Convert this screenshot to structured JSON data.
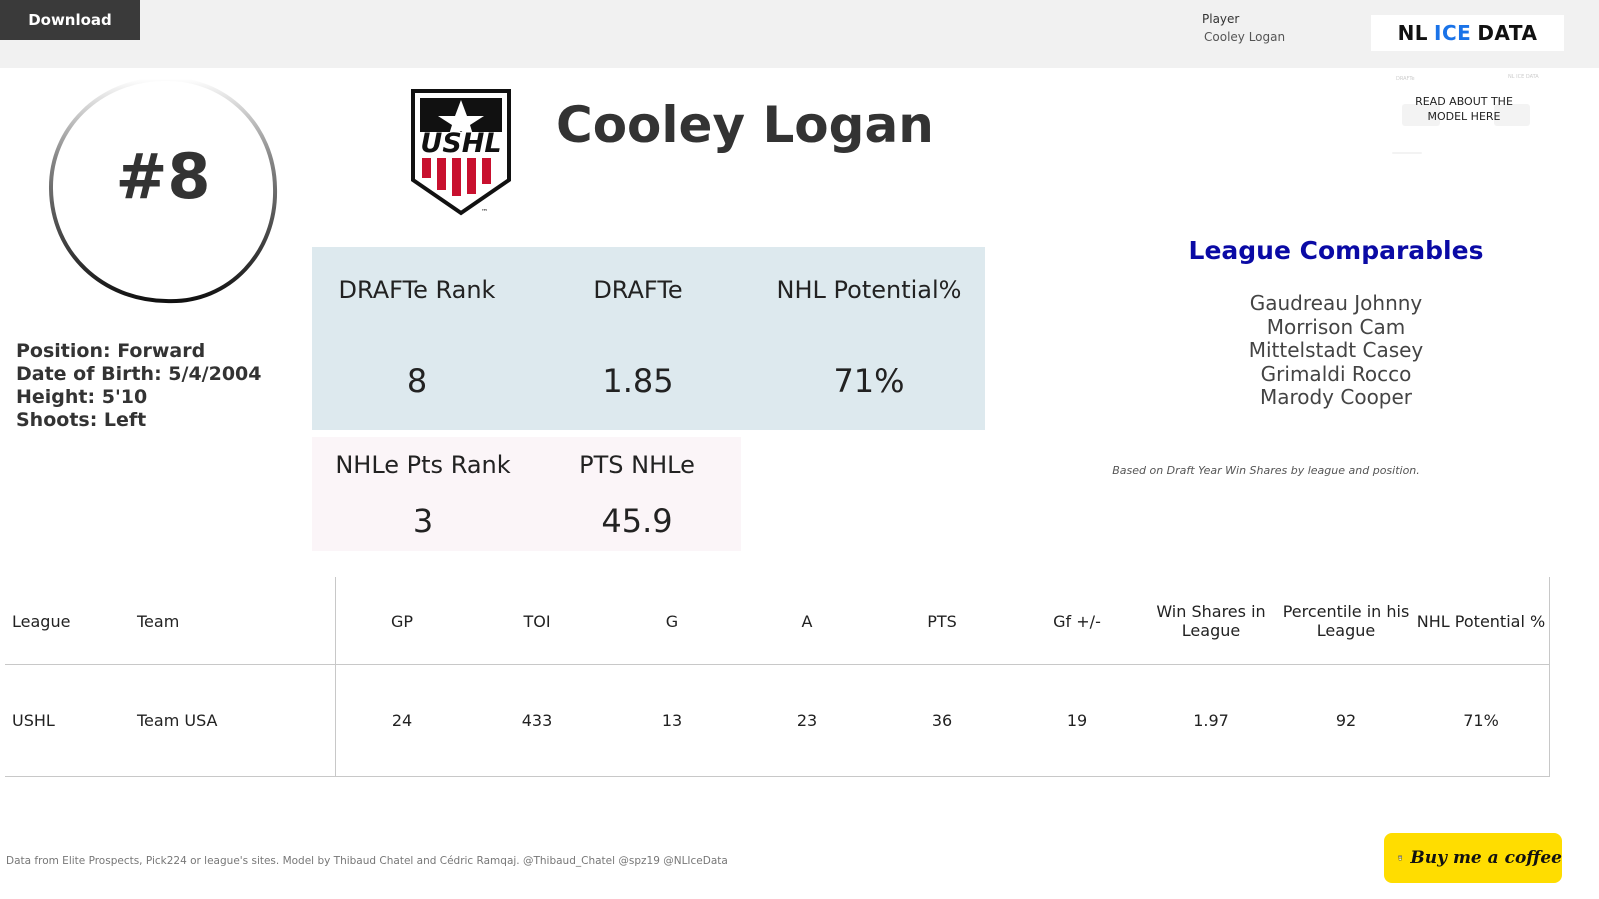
{
  "toolbar": {
    "download_label": "Download"
  },
  "filter": {
    "label": "Player",
    "value": "Cooley Logan"
  },
  "brand": {
    "part1": "NL",
    "part2": "ICE",
    "part3": "DATA"
  },
  "player": {
    "jersey": "#8",
    "name": "Cooley Logan",
    "league_logo_text": "USHL",
    "bio": {
      "position": "Position: Forward",
      "dob": "Date of Birth: 5/4/2004",
      "height": "Height: 5'10",
      "shoots": "Shoots: Left"
    }
  },
  "model_link": {
    "text": "READ ABOUT THE MODEL HERE",
    "ghost_left": "DRAFTe",
    "ghost_right": "NL ICE DATA"
  },
  "stats": {
    "drafte_rank_label": "DRAFTe Rank",
    "drafte_rank_value": "8",
    "drafte_label": "DRAFTe",
    "drafte_value": "1.85",
    "nhl_potential_label": "NHL Potential%",
    "nhl_potential_value": "71%",
    "nhle_pts_rank_label": "NHLe Pts Rank",
    "nhle_pts_rank_value": "3",
    "pts_nhle_label": "PTS NHLe",
    "pts_nhle_value": "45.9"
  },
  "comparables": {
    "title": "League Comparables",
    "players": [
      "Gaudreau Johnny",
      "Morrison Cam",
      "Mittelstadt Casey",
      "Grimaldi Rocco",
      "Marody Cooper"
    ],
    "note": "Based on Draft Year Win Shares by league and position."
  },
  "table": {
    "headers": [
      "League",
      "Team",
      "GP",
      "TOI",
      "G",
      "A",
      "PTS",
      "Gf +/-",
      "Win Shares in League",
      "Percentile in his League",
      "NHL Potential %"
    ],
    "rows": [
      [
        "USHL",
        "Team USA",
        "24",
        "433",
        "13",
        "23",
        "36",
        "19",
        "1.97",
        "92",
        "71%"
      ]
    ]
  },
  "footer": {
    "note": "Data from Elite Prospects, Pick224 or league's sites. Model by Thibaud Chatel and Cédric Ramqaj. @Thibaud_Chatel @spz19 @NLIceData",
    "coffee_label": "Buy me a coffee"
  },
  "colors": {
    "blue_panel": "#dde9ee",
    "pink_panel": "#fbf5f8",
    "comps_title": "#0a0aa5",
    "brand_ice": "#1a73e8",
    "coffee": "#ffdd00",
    "ushl_red": "#c8102e"
  }
}
